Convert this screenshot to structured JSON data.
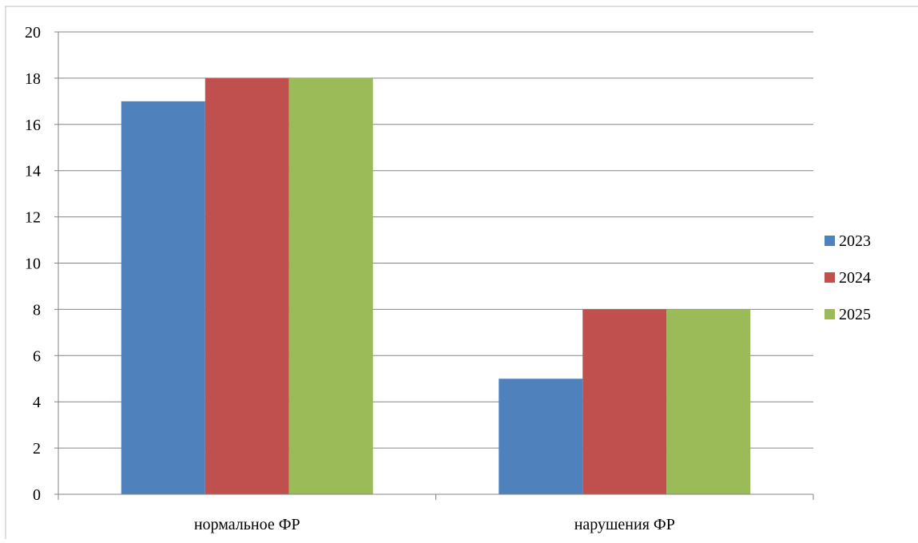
{
  "chart_data": {
    "type": "bar",
    "categories": [
      "нормальное ФР",
      "нарушения ФР"
    ],
    "series": [
      {
        "name": "2023",
        "values": [
          17,
          5
        ],
        "color": "#4F81BD"
      },
      {
        "name": "2024",
        "values": [
          18,
          8
        ],
        "color": "#C0504D"
      },
      {
        "name": "2025",
        "values": [
          18,
          8
        ],
        "color": "#9BBB59"
      }
    ],
    "title": "",
    "xlabel": "",
    "ylabel": "",
    "ylim": [
      0,
      20
    ],
    "yticks": [
      0,
      2,
      4,
      6,
      8,
      10,
      12,
      14,
      16,
      18,
      20
    ],
    "grid": true,
    "legend_position": "right"
  }
}
